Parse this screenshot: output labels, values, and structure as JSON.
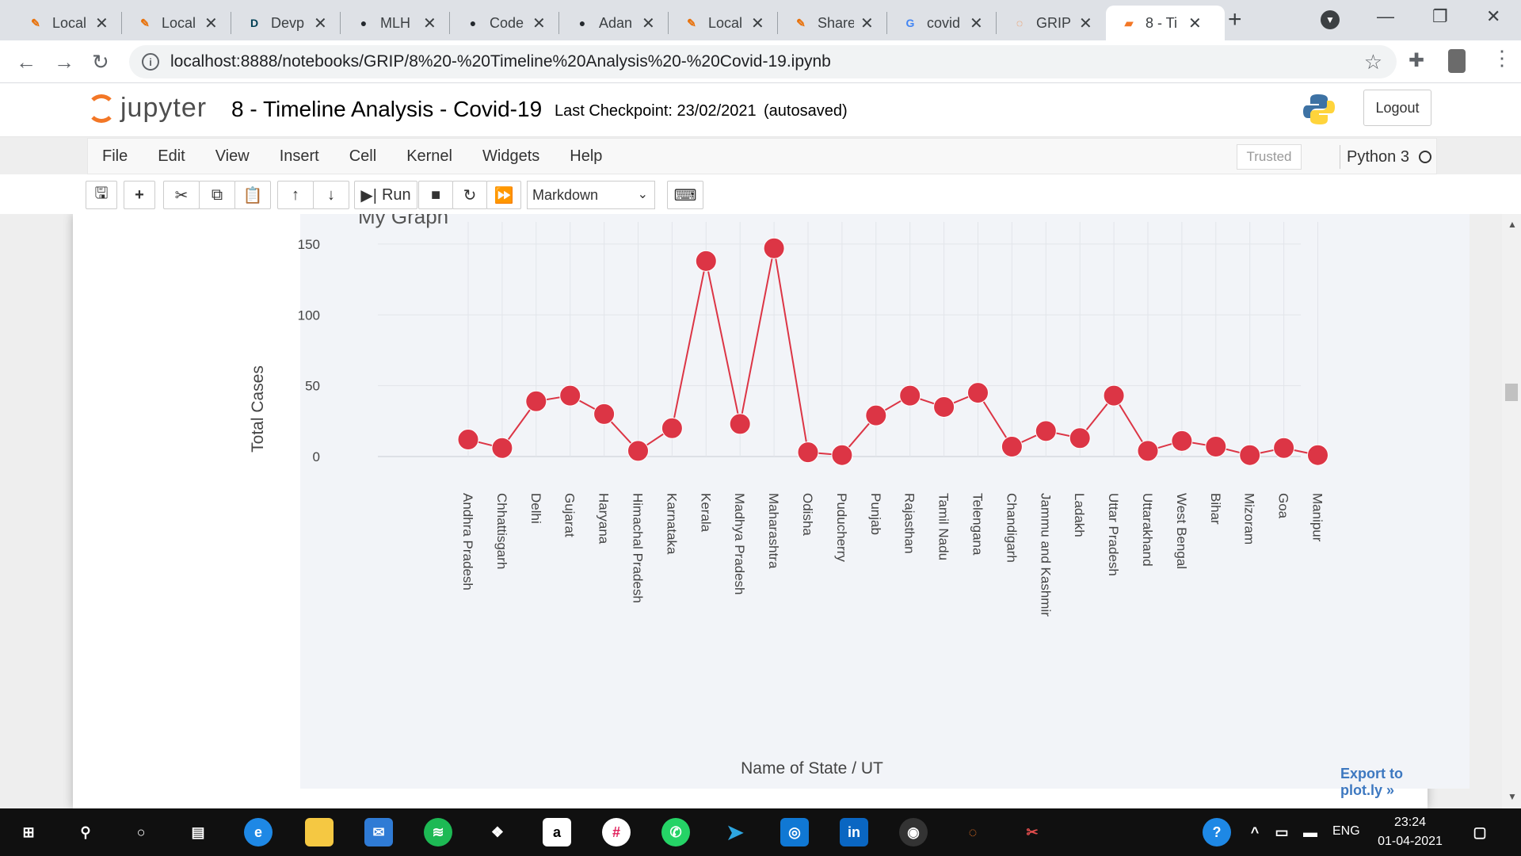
{
  "browser": {
    "tabs": [
      {
        "title": "Local",
        "icon": "colab-icon",
        "active": false
      },
      {
        "title": "Local",
        "icon": "colab-icon",
        "active": false
      },
      {
        "title": "Devp",
        "icon": "devpost-icon",
        "active": false
      },
      {
        "title": "MLH",
        "icon": "github-icon",
        "active": false
      },
      {
        "title": "Code",
        "icon": "github-icon",
        "active": false
      },
      {
        "title": "Adan",
        "icon": "github-icon",
        "active": false
      },
      {
        "title": "Local",
        "icon": "colab-icon",
        "active": false
      },
      {
        "title": "Share",
        "icon": "colab-icon",
        "active": false
      },
      {
        "title": "covid",
        "icon": "google-icon",
        "active": false
      },
      {
        "title": "GRIP",
        "icon": "jupyter-icon",
        "active": false
      },
      {
        "title": "8 - Ti",
        "icon": "notebook-icon",
        "active": true
      }
    ],
    "new_tab": "+",
    "url": "localhost:8888/notebooks/GRIP/8%20-%20Timeline%20Analysis%20-%20Covid-19.ipynb"
  },
  "jupyter": {
    "logo_text": "jupyter",
    "notebook_title": "8 - Timeline Analysis - Covid-19",
    "checkpoint": "Last Checkpoint: 23/02/2021",
    "autosave": "(autosaved)",
    "logout": "Logout",
    "menu": [
      "File",
      "Edit",
      "View",
      "Insert",
      "Cell",
      "Kernel",
      "Widgets",
      "Help"
    ],
    "trusted": "Trusted",
    "kernel": "Python 3",
    "toolbar": {
      "run_label": "Run",
      "cell_type": "Markdown"
    }
  },
  "plot": {
    "export_link": "Export to plot.ly »"
  },
  "chart_data": {
    "type": "line",
    "title": "My Graph",
    "xlabel": "Name of State / UT",
    "ylabel": "Total Cases",
    "ylim": [
      0,
      160
    ],
    "yticks": [
      0,
      50,
      100,
      150
    ],
    "grid": true,
    "marker_color": "#dc3545",
    "line_color": "#dc3545",
    "categories": [
      "Andhra Pradesh",
      "Chhattisgarh",
      "Delhi",
      "Gujarat",
      "Haryana",
      "Himachal Pradesh",
      "Karnataka",
      "Kerala",
      "Madhya Pradesh",
      "Maharashtra",
      "Odisha",
      "Puducherry",
      "Punjab",
      "Rajasthan",
      "Tamil Nadu",
      "Telengana",
      "Chandigarh",
      "Jammu and Kashmir",
      "Ladakh",
      "Uttar Pradesh",
      "Uttarakhand",
      "West Bengal",
      "Bihar",
      "Mizoram",
      "Goa",
      "Manipur"
    ],
    "values": [
      12,
      6,
      39,
      43,
      30,
      4,
      20,
      138,
      23,
      147,
      3,
      1,
      29,
      43,
      35,
      45,
      7,
      18,
      13,
      43,
      4,
      11,
      7,
      1,
      6,
      1
    ]
  },
  "taskbar": {
    "time": "23:24",
    "date": "01-04-2021",
    "lang": "ENG"
  }
}
